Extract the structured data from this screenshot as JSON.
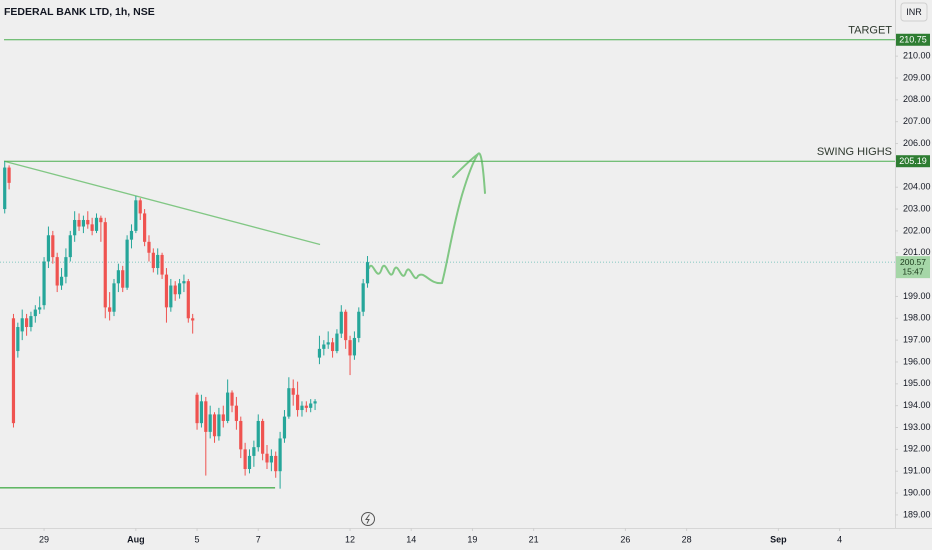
{
  "chart_data": {
    "type": "candlestick",
    "title": "FEDERAL BANK LTD, 1h, NSE",
    "currency": "INR",
    "up_color": "#26a69a",
    "down_color": "#ef5350",
    "line_color": "#4caf50",
    "grid": false,
    "x": [
      -1.286,
      -1.143,
      -1,
      -0.857,
      -0.714,
      -0.571,
      -0.429,
      -0.286,
      -0.143,
      0,
      0.143,
      0.286,
      0.429,
      0.571,
      0.714,
      0.857,
      1,
      1.143,
      1.286,
      1.429,
      1.571,
      1.714,
      1.857,
      2,
      2.143,
      2.286,
      2.429,
      2.571,
      2.714,
      2.857,
      3,
      3.143,
      3.286,
      3.429,
      3.571,
      3.714,
      3.857,
      4,
      4.143,
      4.286,
      4.429,
      4.571,
      4.714,
      4.857,
      5,
      5.143,
      5.286,
      5.429,
      5.571,
      5.714,
      5.857,
      6,
      6.143,
      6.286,
      6.429,
      6.571,
      6.714,
      6.857,
      7,
      7.143,
      7.286,
      7.429,
      7.571,
      7.714,
      7.857,
      8,
      8.143,
      8.286,
      8.429,
      8.571,
      8.714,
      8.857,
      9,
      9.143,
      9.286,
      9.429,
      9.571,
      9.714,
      9.857,
      10,
      10.143,
      10.286,
      10.429,
      10.571
    ],
    "open": [
      203.0,
      204.9,
      198.0,
      196.5,
      197.4,
      198.0,
      197.6,
      198.1,
      198.4,
      198.6,
      200.6,
      201.8,
      200.8,
      199.5,
      199.9,
      200.8,
      201.8,
      202.5,
      202.2,
      202.5,
      202.3,
      202.0,
      202.6,
      202.4,
      198.5,
      198.3,
      199.6,
      200.2,
      199.4,
      201.6,
      202.0,
      203.4,
      202.8,
      201.5,
      201.0,
      200.3,
      200.9,
      200.0,
      198.5,
      199.5,
      199.1,
      199.6,
      199.7,
      198.0,
      194.5,
      193.2,
      194.2,
      192.8,
      193.6,
      192.6,
      193.6,
      193.3,
      194.6,
      194.0,
      193.3,
      192.0,
      191.1,
      191.7,
      192.1,
      193.3,
      191.8,
      191.4,
      191.7,
      191.0,
      192.5,
      193.5,
      194.8,
      194.5,
      193.8,
      194.0,
      193.9,
      194.1,
      196.2,
      196.6,
      196.8,
      196.9,
      196.5,
      197.3,
      198.3,
      197.0,
      196.3,
      197.1,
      198.3,
      199.6
    ],
    "high": [
      205.19,
      205.0,
      198.2,
      197.8,
      198.4,
      198.2,
      198.3,
      198.6,
      199.0,
      200.8,
      202.2,
      202.0,
      201.0,
      200.3,
      201.2,
      202.0,
      202.9,
      202.8,
      202.7,
      202.9,
      202.6,
      202.8,
      202.7,
      202.6,
      199.2,
      199.8,
      200.5,
      200.4,
      201.8,
      202.3,
      203.6,
      203.5,
      203.0,
      201.8,
      201.2,
      201.2,
      201.0,
      200.3,
      199.8,
      199.7,
      199.8,
      200.0,
      199.8,
      198.2,
      194.6,
      194.5,
      194.4,
      194.0,
      193.7,
      193.9,
      194.0,
      195.2,
      194.7,
      194.4,
      193.5,
      192.3,
      192.0,
      192.4,
      193.6,
      193.4,
      192.2,
      192.0,
      191.9,
      192.8,
      193.8,
      195.3,
      195.2,
      195.1,
      194.2,
      194.2,
      194.3,
      194.3,
      197.2,
      197.0,
      197.4,
      197.1,
      197.5,
      198.6,
      198.4,
      197.2,
      197.4,
      198.5,
      199.8,
      200.85
    ],
    "low": [
      202.8,
      203.9,
      193.0,
      196.2,
      197.0,
      197.2,
      197.4,
      197.8,
      198.2,
      198.4,
      200.3,
      200.5,
      199.2,
      199.3,
      199.6,
      200.6,
      201.5,
      202.0,
      201.9,
      202.1,
      201.8,
      201.9,
      201.5,
      198.0,
      197.9,
      198.1,
      199.2,
      199.2,
      199.3,
      201.2,
      201.9,
      202.5,
      201.3,
      200.6,
      200.1,
      200.0,
      199.8,
      197.8,
      198.3,
      198.8,
      198.9,
      199.2,
      197.8,
      197.3,
      192.9,
      193.0,
      190.8,
      192.5,
      192.3,
      192.4,
      193.0,
      193.2,
      193.7,
      192.9,
      191.6,
      190.8,
      190.9,
      191.2,
      191.9,
      191.5,
      191.1,
      191.0,
      190.7,
      190.2,
      192.3,
      193.4,
      194.0,
      193.5,
      193.5,
      193.7,
      193.7,
      193.8,
      195.9,
      196.3,
      196.6,
      196.2,
      196.4,
      197.1,
      196.6,
      195.4,
      196.1,
      196.9,
      198.1,
      199.4
    ],
    "close": [
      204.9,
      204.2,
      193.2,
      197.6,
      198.0,
      197.6,
      198.1,
      198.4,
      198.5,
      200.6,
      201.8,
      200.8,
      199.5,
      199.9,
      200.8,
      201.8,
      202.5,
      202.2,
      202.5,
      202.3,
      202.0,
      202.6,
      202.4,
      198.5,
      198.3,
      199.6,
      200.2,
      199.4,
      201.6,
      202.0,
      203.4,
      202.8,
      201.5,
      201.0,
      200.3,
      200.9,
      200.0,
      198.5,
      199.5,
      199.1,
      199.6,
      199.7,
      198.0,
      197.9,
      193.2,
      194.2,
      192.8,
      193.6,
      192.6,
      193.6,
      193.3,
      194.6,
      194.0,
      193.3,
      192.0,
      191.1,
      191.7,
      192.1,
      193.3,
      191.8,
      191.4,
      191.7,
      191.0,
      192.5,
      193.5,
      194.8,
      194.5,
      193.8,
      194.0,
      193.9,
      194.1,
      194.2,
      196.6,
      196.8,
      196.9,
      196.5,
      197.3,
      198.3,
      197.0,
      196.3,
      197.1,
      198.3,
      199.6,
      200.57
    ],
    "xlim": [
      -1.44,
      27.81
    ],
    "xticks": [
      {
        "value": 0,
        "label": "29"
      },
      {
        "value": 3,
        "label": "Aug"
      },
      {
        "value": 5,
        "label": "5"
      },
      {
        "value": 7,
        "label": "7"
      },
      {
        "value": 10,
        "label": "12"
      },
      {
        "value": 12,
        "label": "14"
      },
      {
        "value": 14,
        "label": "19"
      },
      {
        "value": 16,
        "label": "21"
      },
      {
        "value": 19,
        "label": "26"
      },
      {
        "value": 21,
        "label": "28"
      },
      {
        "value": 24,
        "label": "Sep"
      },
      {
        "value": 26,
        "label": "4"
      }
    ],
    "ylim": [
      188.4,
      212.57
    ],
    "yticks": [
      {
        "value": 189,
        "label": "189.00"
      },
      {
        "value": 190,
        "label": "190.00"
      },
      {
        "value": 191,
        "label": "191.00"
      },
      {
        "value": 192,
        "label": "192.00"
      },
      {
        "value": 193,
        "label": "193.00"
      },
      {
        "value": 194,
        "label": "194.00"
      },
      {
        "value": 195,
        "label": "195.00"
      },
      {
        "value": 196,
        "label": "196.00"
      },
      {
        "value": 197,
        "label": "197.00"
      },
      {
        "value": 198,
        "label": "198.00"
      },
      {
        "value": 199,
        "label": "199.00"
      },
      {
        "value": 201,
        "label": "201.00"
      },
      {
        "value": 202,
        "label": "202.00"
      },
      {
        "value": 203,
        "label": "203.00"
      },
      {
        "value": 204,
        "label": "204.00"
      },
      {
        "value": 206,
        "label": "206.00"
      },
      {
        "value": 207,
        "label": "207.00"
      },
      {
        "value": 208,
        "label": "208.00"
      },
      {
        "value": 209,
        "label": "209.00"
      },
      {
        "value": 210,
        "label": "210.00"
      }
    ],
    "levels": [
      {
        "name": "TARGET",
        "value": 210.75
      },
      {
        "name": "SWING HIGHS",
        "value": 205.19
      }
    ],
    "trend_lines": [
      {
        "x": [
          -1.44,
          7.55
        ],
        "y": [
          190.24,
          190.24
        ]
      },
      {
        "x": [
          -1.3,
          9.02
        ],
        "y": [
          205.19,
          201.38
        ]
      }
    ],
    "last_price": 200.57,
    "last_time": "15:47"
  }
}
